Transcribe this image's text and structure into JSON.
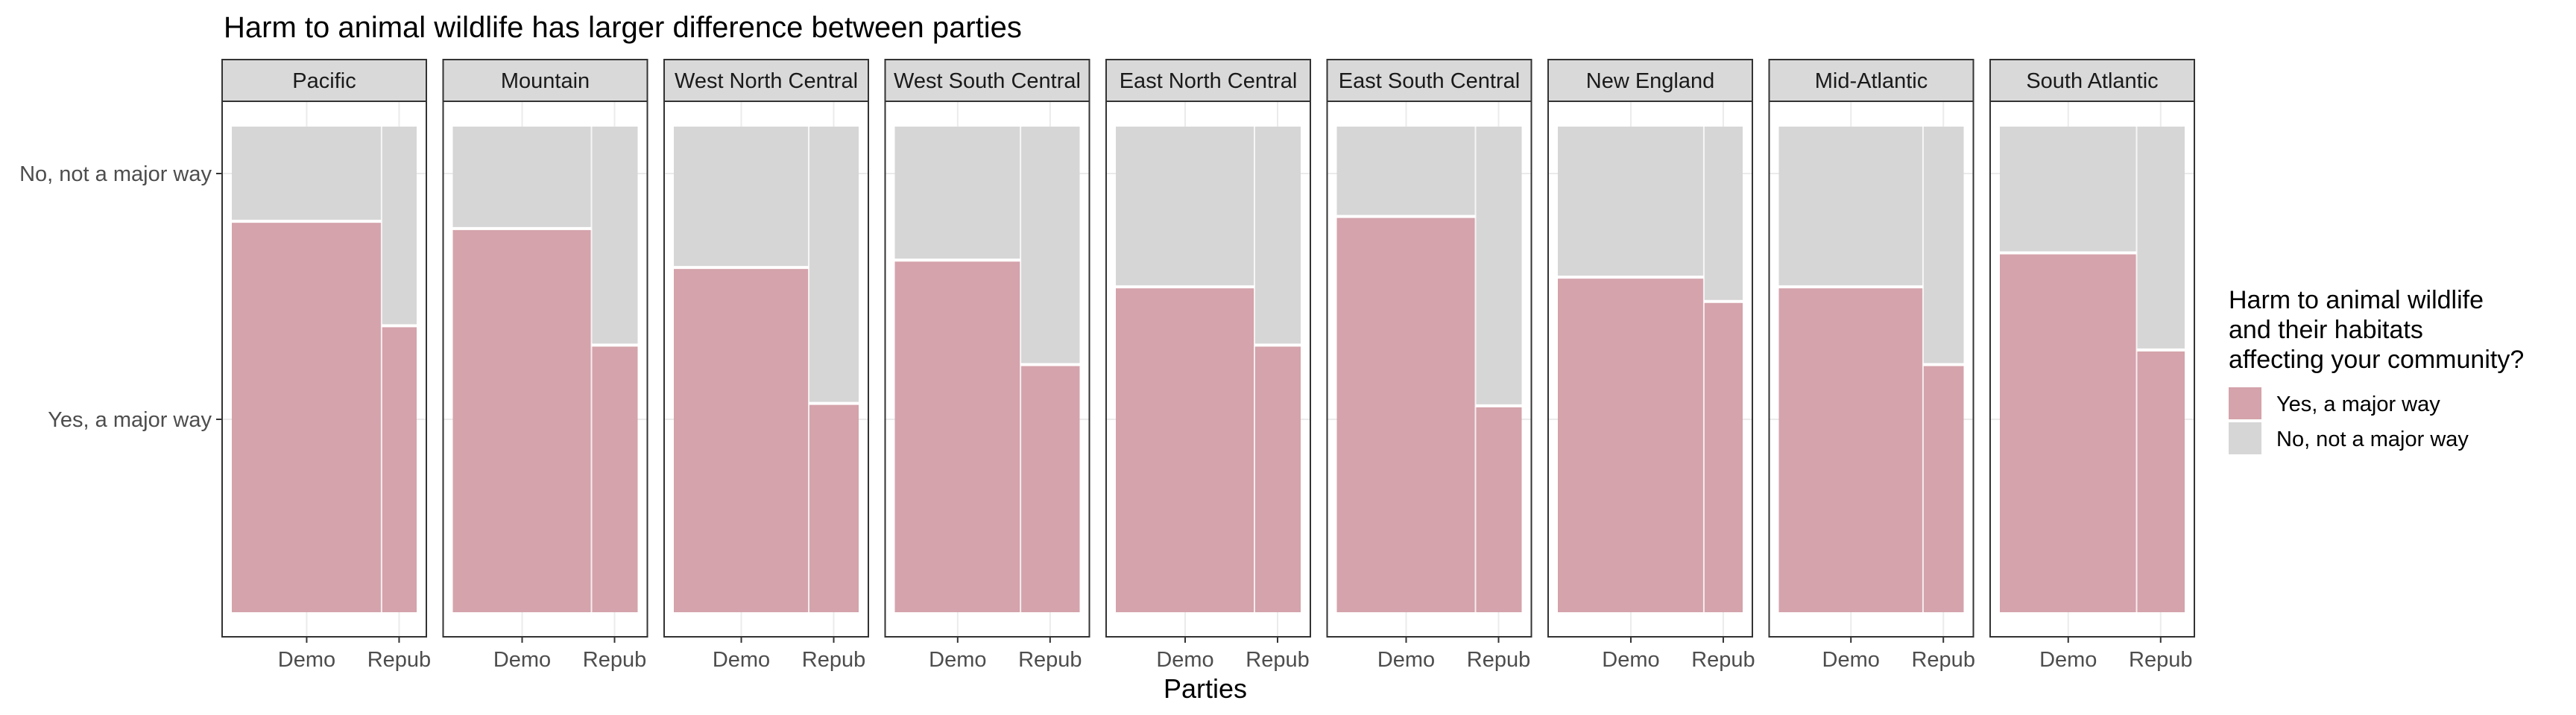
{
  "chart_data": {
    "type": "mosaic",
    "title": "Harm to animal wildlife has larger difference between parties",
    "xlabel": "Parties",
    "ylabel": "",
    "x_categories": [
      "Demo",
      "Repub"
    ],
    "y_categories": [
      "Yes, a major way",
      "No, not a major way"
    ],
    "colors": {
      "Yes, a major way": "#d4a3ab",
      "No, not a major way": "#d6d6d6"
    },
    "legend": {
      "title_lines": [
        "Harm to animal wildlife",
        " and their habitats",
        " affecting your community?"
      ],
      "entries": [
        "Yes, a major way",
        "No, not a major way"
      ],
      "position": "right"
    },
    "grid": true,
    "panels": [
      {
        "name": "Pacific",
        "demo_share": 0.81,
        "yes": {
          "Demo": 0.805,
          "Repub": 0.59
        }
      },
      {
        "name": "Mountain",
        "demo_share": 0.75,
        "yes": {
          "Demo": 0.79,
          "Repub": 0.55
        }
      },
      {
        "name": "West North Central",
        "demo_share": 0.73,
        "yes": {
          "Demo": 0.71,
          "Repub": 0.43
        }
      },
      {
        "name": "West South Central",
        "demo_share": 0.68,
        "yes": {
          "Demo": 0.725,
          "Repub": 0.51
        }
      },
      {
        "name": "East North Central",
        "demo_share": 0.75,
        "yes": {
          "Demo": 0.67,
          "Repub": 0.55
        }
      },
      {
        "name": "East South Central",
        "demo_share": 0.75,
        "yes": {
          "Demo": 0.815,
          "Repub": 0.425
        }
      },
      {
        "name": "New England",
        "demo_share": 0.79,
        "yes": {
          "Demo": 0.69,
          "Repub": 0.64
        }
      },
      {
        "name": "Mid-Atlantic",
        "demo_share": 0.78,
        "yes": {
          "Demo": 0.67,
          "Repub": 0.51
        }
      },
      {
        "name": "South Atlantic",
        "demo_share": 0.74,
        "yes": {
          "Demo": 0.74,
          "Repub": 0.54
        }
      }
    ]
  }
}
